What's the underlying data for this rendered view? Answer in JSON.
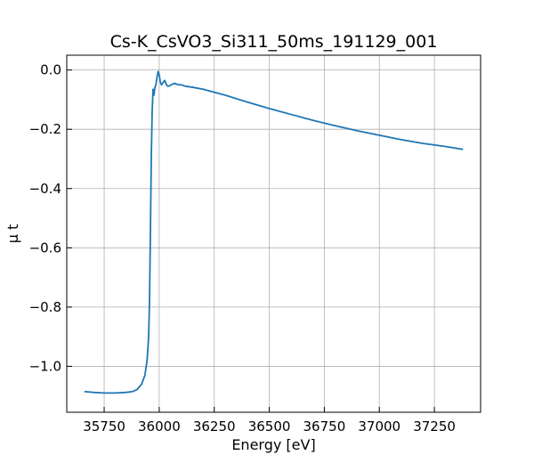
{
  "chart_data": {
    "type": "line",
    "title": "Cs-K_CsVO3_Si311_50ms_191129_001",
    "xlabel": "Energy [eV]",
    "ylabel": "μ t",
    "xlim": [
      35580,
      37460
    ],
    "ylim": [
      -1.155,
      0.05
    ],
    "grid": true,
    "xticks": [
      35750,
      36000,
      36250,
      36500,
      36750,
      37000,
      37250
    ],
    "yticks": [
      0.0,
      -0.2,
      -0.4,
      -0.6,
      -0.8,
      -1.0
    ],
    "xtick_labels": [
      "35750",
      "36000",
      "36250",
      "36500",
      "36750",
      "37000",
      "37250"
    ],
    "ytick_labels": [
      "0.0",
      "−0.2",
      "−0.4",
      "−0.6",
      "−0.8",
      "−1.0"
    ],
    "series": [
      {
        "color": "#1f77b4",
        "x": [
          35660,
          35700,
          35750,
          35800,
          35850,
          35880,
          35900,
          35920,
          35935,
          35945,
          35952,
          35956,
          35960,
          35964,
          35968,
          35972,
          35976,
          35980,
          35985,
          35990,
          35995,
          36000,
          36005,
          36010,
          36015,
          36020,
          36025,
          36030,
          36035,
          36040,
          36050,
          36060,
          36070,
          36080,
          36090,
          36100,
          36120,
          36150,
          36200,
          36250,
          36300,
          36400,
          36500,
          36600,
          36700,
          36800,
          36900,
          37000,
          37100,
          37200,
          37300,
          37380
        ],
        "y": [
          -1.085,
          -1.088,
          -1.09,
          -1.09,
          -1.088,
          -1.085,
          -1.078,
          -1.06,
          -1.03,
          -0.98,
          -0.9,
          -0.78,
          -0.55,
          -0.3,
          -0.14,
          -0.065,
          -0.085,
          -0.06,
          -0.05,
          -0.025,
          -0.005,
          -0.015,
          -0.04,
          -0.05,
          -0.045,
          -0.04,
          -0.035,
          -0.045,
          -0.052,
          -0.055,
          -0.052,
          -0.048,
          -0.045,
          -0.048,
          -0.05,
          -0.05,
          -0.055,
          -0.058,
          -0.065,
          -0.075,
          -0.085,
          -0.108,
          -0.13,
          -0.15,
          -0.17,
          -0.188,
          -0.205,
          -0.22,
          -0.235,
          -0.248,
          -0.258,
          -0.268
        ]
      }
    ]
  }
}
